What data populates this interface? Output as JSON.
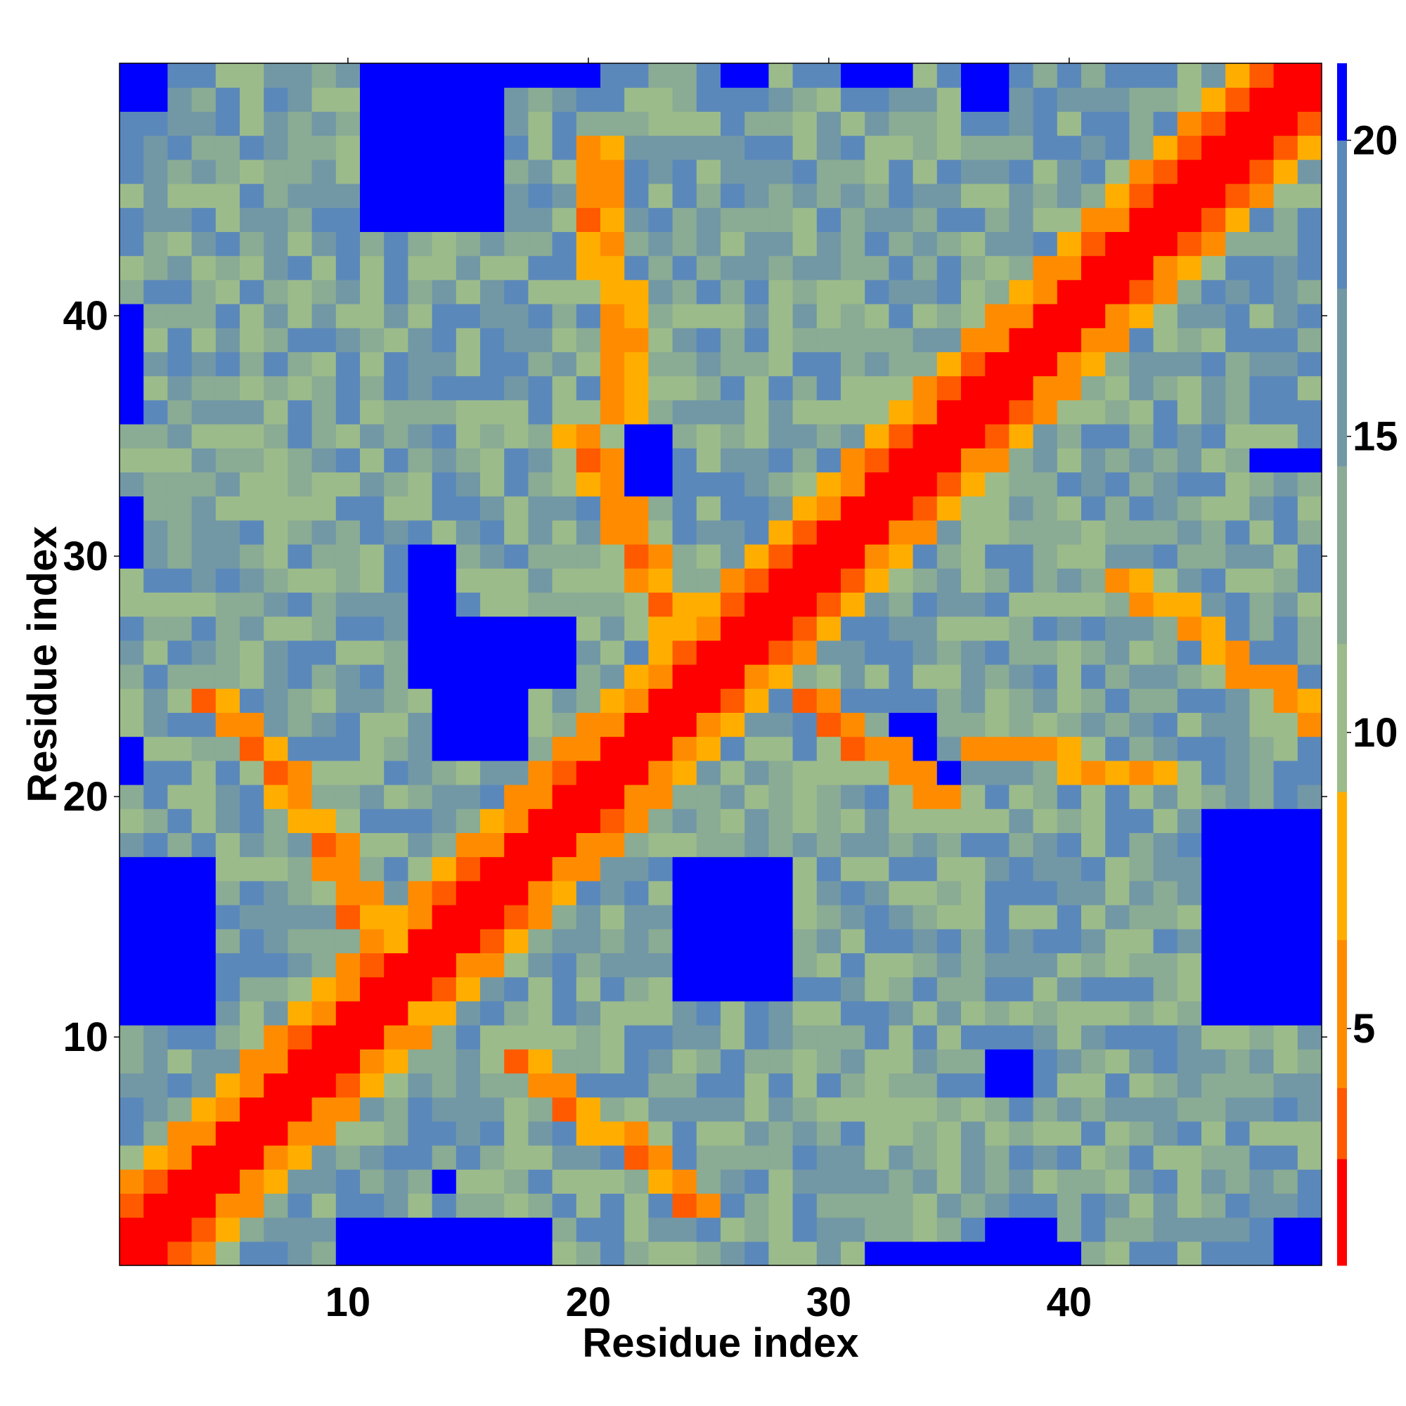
{
  "chart_data": {
    "type": "heatmap",
    "title": "",
    "xlabel": "Residue index",
    "ylabel": "Residue index",
    "n": 50,
    "xlim": [
      1,
      50
    ],
    "ylim": [
      1,
      50
    ],
    "x_ticks": [
      10,
      20,
      30,
      40
    ],
    "y_ticks": [
      10,
      20,
      30,
      40
    ],
    "colorbar": {
      "ticks": [
        5,
        10,
        15,
        20
      ],
      "range": [
        1,
        21
      ],
      "colors": [
        "#ff0000",
        "#ff5a00",
        "#ff8c00",
        "#ffae00",
        "#9cbb8a",
        "#8aab94",
        "#7298a6",
        "#5b88bb",
        "#0000ff"
      ]
    },
    "diagonal_band": "distance increases away from diagonal; band width 1-2 residues red, 3-4 orange",
    "blue_blocks": [
      {
        "rows": [
          1,
          2
        ],
        "cols": [
          10,
          18
        ]
      },
      {
        "rows": [
          4,
          4
        ],
        "cols": [
          14,
          14
        ]
      },
      {
        "rows": [
          11,
          17
        ],
        "cols": [
          1,
          4
        ]
      },
      {
        "rows": [
          11,
          19
        ],
        "cols": [
          46,
          50
        ]
      },
      {
        "rows": [
          12,
          17
        ],
        "cols": [
          24,
          28
        ]
      },
      {
        "rows": [
          22,
          24
        ],
        "cols": [
          14,
          17
        ]
      },
      {
        "rows": [
          25,
          27
        ],
        "cols": [
          13,
          19
        ]
      },
      {
        "rows": [
          28,
          30
        ],
        "cols": [
          13,
          14
        ]
      },
      {
        "rows": [
          33,
          35
        ],
        "cols": [
          22,
          23
        ]
      },
      {
        "rows": [
          44,
          50
        ],
        "cols": [
          11,
          16
        ]
      },
      {
        "rows": [
          49,
          50
        ],
        "cols": [
          1,
          2
        ]
      },
      {
        "rows": [
          50,
          50
        ],
        "cols": [
          16,
          20
        ]
      },
      {
        "rows": [
          50,
          50
        ],
        "cols": [
          26,
          27
        ]
      },
      {
        "rows": [
          50,
          50
        ],
        "cols": [
          31,
          33
        ]
      },
      {
        "rows": [
          49,
          50
        ],
        "cols": [
          36,
          37
        ]
      },
      {
        "rows": [
          36,
          40
        ],
        "cols": [
          1,
          1
        ]
      },
      {
        "rows": [
          1,
          1
        ],
        "cols": [
          32,
          40
        ]
      },
      {
        "rows": [
          1,
          2
        ],
        "cols": [
          37,
          39
        ]
      },
      {
        "rows": [
          1,
          2
        ],
        "cols": [
          49,
          50
        ]
      },
      {
        "rows": [
          8,
          9
        ],
        "cols": [
          37,
          38
        ]
      },
      {
        "rows": [
          20,
          21
        ],
        "cols": [
          34,
          35
        ]
      },
      {
        "rows": [
          22,
          23
        ],
        "cols": [
          33,
          34
        ]
      },
      {
        "rows": [
          34,
          34
        ],
        "cols": [
          48,
          50
        ]
      },
      {
        "rows": [
          21,
          22
        ],
        "cols": [
          1,
          1
        ]
      },
      {
        "rows": [
          30,
          32
        ],
        "cols": [
          1,
          1
        ]
      }
    ],
    "orange_streaks": [
      {
        "rows": [
          18,
          24
        ],
        "cols": [
          4,
          9
        ],
        "comment": "off-diagonal antiparallel contacts"
      },
      {
        "rows": [
          11,
          17
        ],
        "cols": [
          9,
          12
        ]
      },
      {
        "rows": [
          3,
          9
        ],
        "cols": [
          17,
          24
        ]
      },
      {
        "rows": [
          27,
          35
        ],
        "cols": [
          19,
          23
        ]
      },
      {
        "rows": [
          36,
          47
        ],
        "cols": [
          20,
          21
        ]
      },
      {
        "rows": [
          20,
          24
        ],
        "cols": [
          29,
          34
        ]
      },
      {
        "rows": [
          21,
          22
        ],
        "cols": [
          36,
          43
        ]
      },
      {
        "rows": [
          23,
          29
        ],
        "cols": [
          42,
          50
        ]
      }
    ]
  }
}
